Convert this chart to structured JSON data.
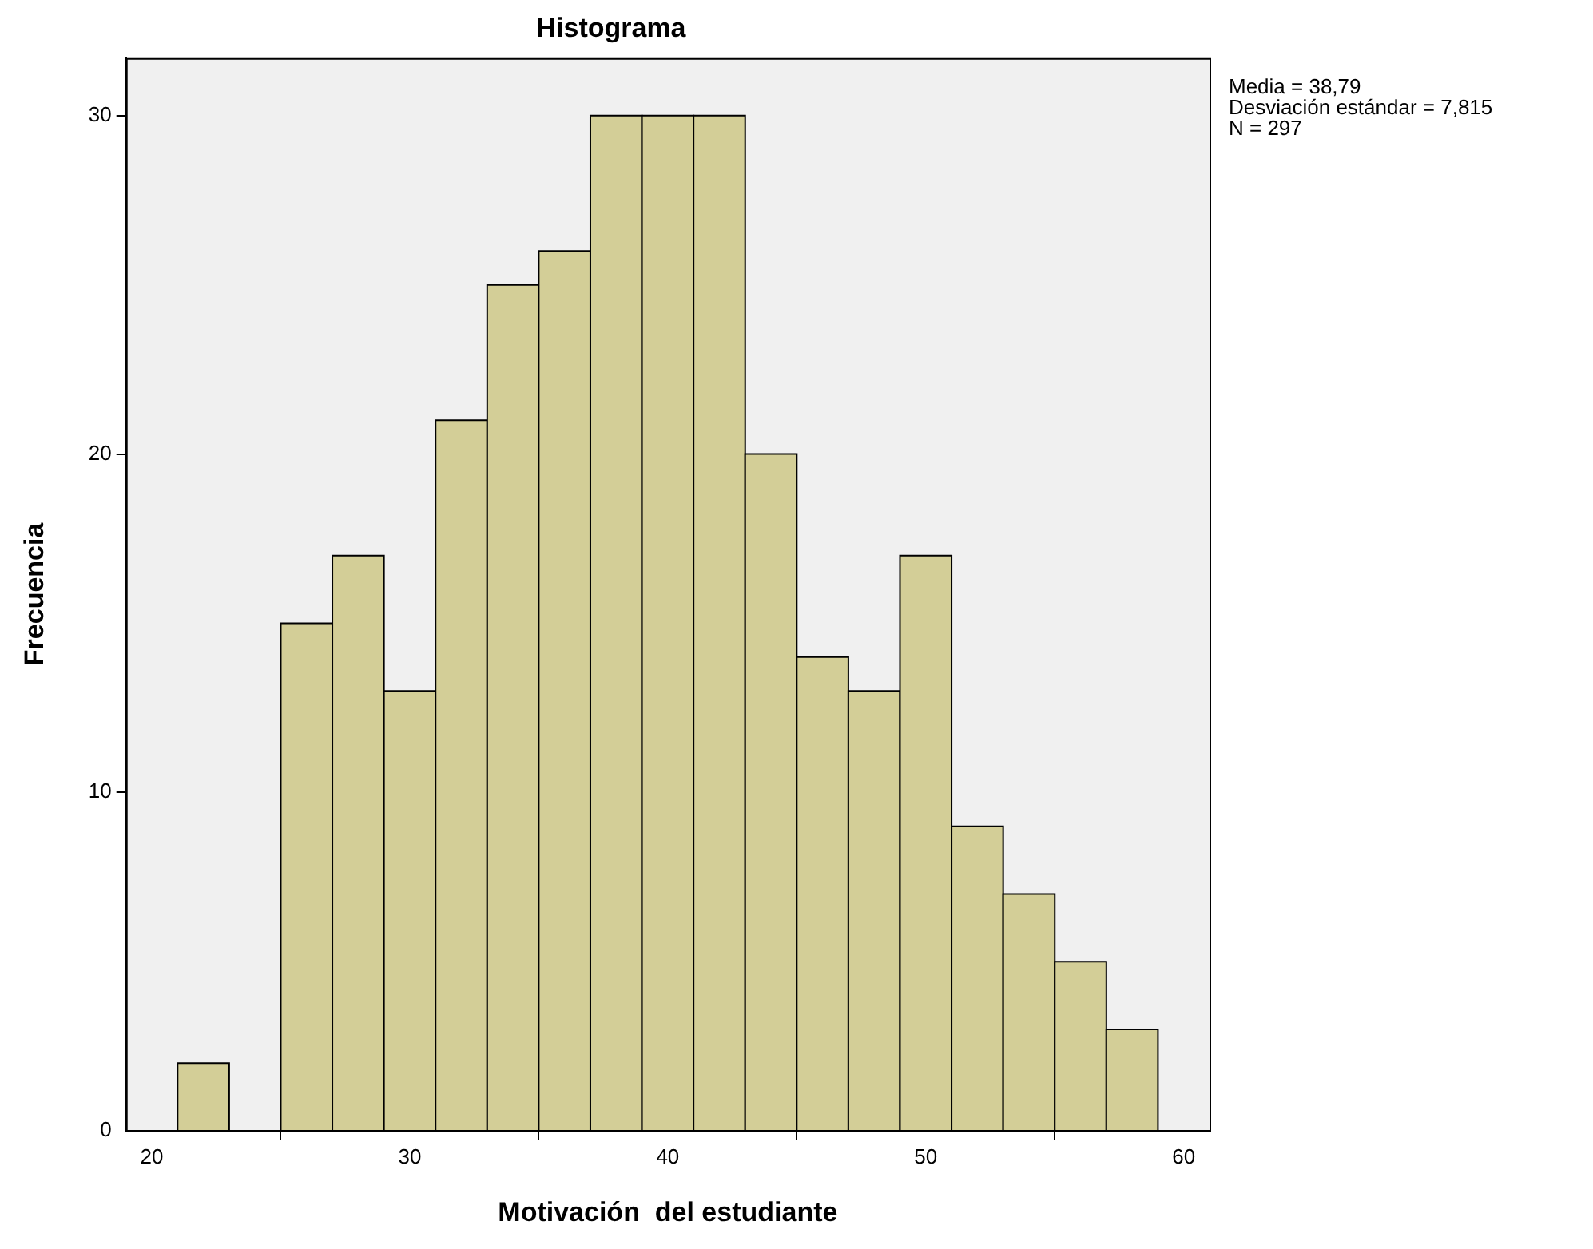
{
  "chart_data": {
    "type": "histogram",
    "title": "Histograma",
    "xlabel": "Motivación  del estudiante",
    "ylabel": "Frecuencia",
    "bins": [
      21,
      23,
      25,
      27,
      29,
      31,
      33,
      35,
      37,
      39,
      41,
      43,
      45,
      47,
      49,
      51,
      53,
      55,
      57,
      59
    ],
    "values": [
      2,
      0,
      15,
      17,
      13,
      21,
      25,
      26,
      30,
      30,
      30,
      20,
      14,
      13,
      17,
      9,
      7,
      5,
      3
    ],
    "color": "#d3ce97",
    "xlim": [
      19,
      61
    ],
    "xticks": [
      20,
      30,
      40,
      50,
      60
    ],
    "ylim": [
      0,
      31.7
    ],
    "yticks": [
      0,
      10,
      20,
      30
    ],
    "grid": false,
    "legend": false,
    "annotations": [
      "Media = 38,79",
      "Desviación estándar = 7,815",
      "N = 297"
    ]
  }
}
